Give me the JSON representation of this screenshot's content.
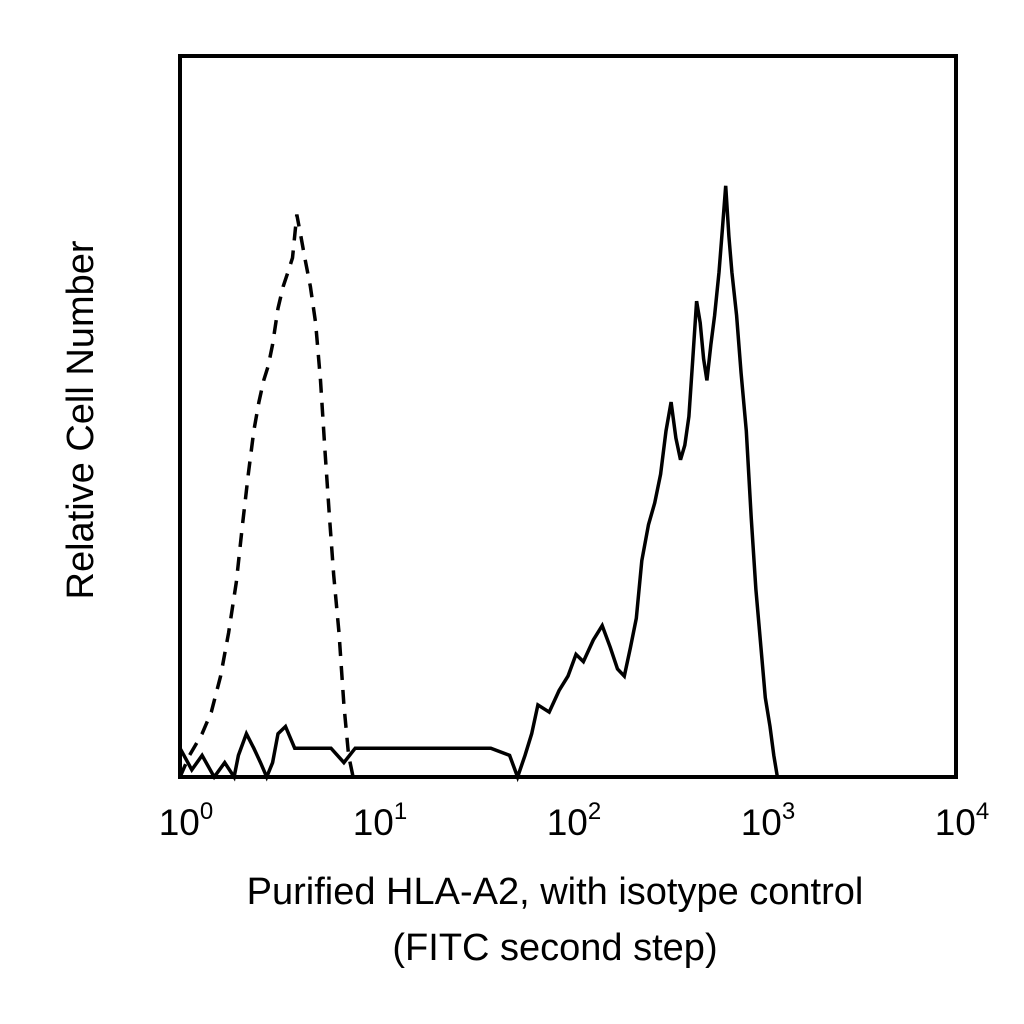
{
  "chart_data": {
    "type": "histogram",
    "title": "",
    "xlabel_line1": "Purified HLA-A2, with isotype control",
    "xlabel_line2": "(FITC second step)",
    "ylabel": "Relative Cell Number",
    "x_scale": "log",
    "xlim": [
      1,
      10000
    ],
    "ylim": [
      0,
      100
    ],
    "grid": false,
    "legend": "none",
    "x_ticks": [
      {
        "base": "10",
        "exp": "0"
      },
      {
        "base": "10",
        "exp": "1"
      },
      {
        "base": "10",
        "exp": "2"
      },
      {
        "base": "10",
        "exp": "3"
      },
      {
        "base": "10",
        "exp": "4"
      }
    ],
    "series": [
      {
        "style": "dashed",
        "color": "#000000",
        "points": [
          [
            1.0,
            0
          ],
          [
            1.12,
            3
          ],
          [
            1.3,
            6
          ],
          [
            1.45,
            9
          ],
          [
            1.62,
            14
          ],
          [
            1.78,
            20
          ],
          [
            1.95,
            27
          ],
          [
            2.1,
            35
          ],
          [
            2.25,
            42
          ],
          [
            2.4,
            48
          ],
          [
            2.55,
            52
          ],
          [
            2.7,
            55
          ],
          [
            2.85,
            57
          ],
          [
            3.0,
            60
          ],
          [
            3.2,
            65
          ],
          [
            3.4,
            68
          ],
          [
            3.6,
            70
          ],
          [
            3.8,
            72
          ],
          [
            4.0,
            78
          ],
          [
            4.2,
            75
          ],
          [
            4.4,
            72
          ],
          [
            4.7,
            68
          ],
          [
            5.0,
            63
          ],
          [
            5.3,
            55
          ],
          [
            5.6,
            45
          ],
          [
            5.9,
            36
          ],
          [
            6.2,
            28
          ],
          [
            6.6,
            20
          ],
          [
            7.0,
            10
          ],
          [
            7.4,
            3
          ],
          [
            7.8,
            0
          ]
        ]
      },
      {
        "style": "solid",
        "color": "#000000",
        "points": [
          [
            1.0,
            4
          ],
          [
            1.15,
            1
          ],
          [
            1.3,
            3
          ],
          [
            1.5,
            0
          ],
          [
            1.7,
            2
          ],
          [
            1.9,
            0
          ],
          [
            2.0,
            3
          ],
          [
            2.2,
            6
          ],
          [
            2.4,
            4
          ],
          [
            2.6,
            2
          ],
          [
            2.8,
            0
          ],
          [
            3.0,
            2
          ],
          [
            3.2,
            6
          ],
          [
            3.5,
            7
          ],
          [
            3.9,
            4
          ],
          [
            4.5,
            4
          ],
          [
            6.0,
            4
          ],
          [
            7.0,
            2
          ],
          [
            8.0,
            4
          ],
          [
            12.0,
            4
          ],
          [
            20.0,
            4
          ],
          [
            30.0,
            4
          ],
          [
            40.0,
            4
          ],
          [
            50.0,
            3
          ],
          [
            55.0,
            0
          ],
          [
            60.0,
            3
          ],
          [
            65.0,
            6
          ],
          [
            70.0,
            10
          ],
          [
            80.0,
            9
          ],
          [
            90.0,
            12
          ],
          [
            100,
            14
          ],
          [
            110,
            17
          ],
          [
            120,
            16
          ],
          [
            135,
            19
          ],
          [
            150,
            21
          ],
          [
            165,
            18
          ],
          [
            180,
            15
          ],
          [
            195,
            14
          ],
          [
            210,
            18
          ],
          [
            225,
            22
          ],
          [
            240,
            30
          ],
          [
            260,
            35
          ],
          [
            280,
            38
          ],
          [
            300,
            42
          ],
          [
            320,
            48
          ],
          [
            340,
            52
          ],
          [
            360,
            47
          ],
          [
            380,
            44
          ],
          [
            400,
            46
          ],
          [
            420,
            50
          ],
          [
            440,
            58
          ],
          [
            460,
            66
          ],
          [
            480,
            63
          ],
          [
            500,
            58
          ],
          [
            520,
            55
          ],
          [
            545,
            60
          ],
          [
            570,
            64
          ],
          [
            600,
            70
          ],
          [
            625,
            76
          ],
          [
            650,
            82
          ],
          [
            675,
            75
          ],
          [
            700,
            70
          ],
          [
            740,
            64
          ],
          [
            780,
            56
          ],
          [
            830,
            48
          ],
          [
            880,
            36
          ],
          [
            930,
            26
          ],
          [
            980,
            19
          ],
          [
            1040,
            11
          ],
          [
            1100,
            7
          ],
          [
            1150,
            3
          ],
          [
            1200,
            0
          ]
        ]
      }
    ]
  }
}
